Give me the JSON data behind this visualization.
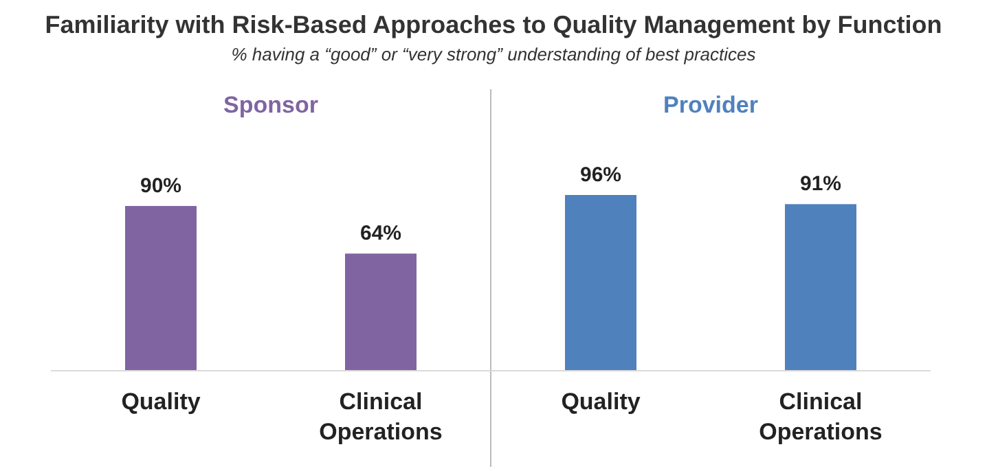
{
  "chart_data": {
    "type": "bar",
    "title": "Familiarity with Risk-Based Approaches to Quality Management by Function",
    "subtitle": "% having a “good” or “very strong” understanding of best practices",
    "annotations": [
      "Sponsor",
      "Provider"
    ],
    "categories": [
      "Quality",
      "Clinical Operations",
      "Quality",
      "Clinical Operations"
    ],
    "values": [
      90,
      64,
      96,
      91
    ],
    "colors": [
      "#8064a2",
      "#8064a2",
      "#4f81bd",
      "#4f81bd"
    ],
    "value_labels": [
      "90%",
      "64%",
      "96%",
      "91%"
    ],
    "tick_labels": "x"
  }
}
